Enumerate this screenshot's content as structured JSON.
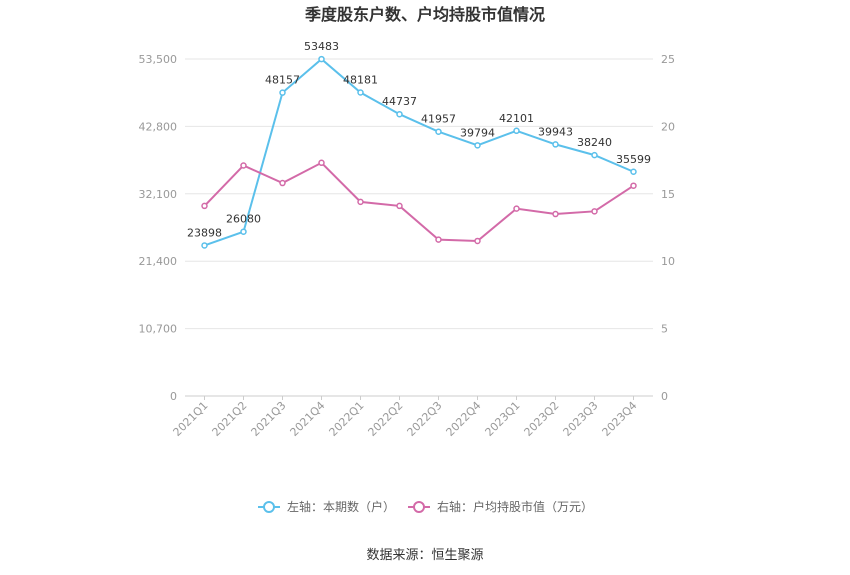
{
  "chart_data": {
    "type": "line",
    "title": "季度股东户数、户均持股市值情况",
    "categories": [
      "2021Q1",
      "2021Q2",
      "2021Q3",
      "2021Q4",
      "2022Q1",
      "2022Q2",
      "2022Q3",
      "2022Q4",
      "2023Q1",
      "2023Q2",
      "2023Q3",
      "2023Q4"
    ],
    "left_axis": {
      "ylim": [
        0,
        53500
      ],
      "ticks": [
        "0",
        "10,700",
        "21,400",
        "32,100",
        "42,800",
        "53,500"
      ],
      "tick_values": [
        0,
        10700,
        21400,
        32100,
        42800,
        53500
      ]
    },
    "right_axis": {
      "ylim": [
        0,
        25
      ],
      "ticks": [
        "0",
        "5",
        "10",
        "15",
        "20",
        "25"
      ],
      "tick_values": [
        0,
        5,
        10,
        15,
        20,
        25
      ]
    },
    "series": [
      {
        "name": "左轴：本期数（户）",
        "axis": "left",
        "color": "#5bc0eb",
        "values": [
          23898,
          26080,
          48157,
          53483,
          48181,
          44737,
          41957,
          39794,
          42101,
          39943,
          38240,
          35599
        ],
        "labels": [
          "23898",
          "26080",
          "48157",
          "53483",
          "48181",
          "44737",
          "41957",
          "39794",
          "42101",
          "39943",
          "38240",
          "35599"
        ]
      },
      {
        "name": "右轴：户均持股市值（万元）",
        "axis": "right",
        "color": "#d36aa8",
        "values": [
          14.1,
          17.1,
          15.8,
          17.3,
          14.4,
          14.1,
          11.6,
          11.5,
          13.9,
          13.5,
          13.7,
          15.6
        ]
      }
    ],
    "grid": true,
    "legend_position": "bottom"
  },
  "source": "数据来源：恒生聚源"
}
